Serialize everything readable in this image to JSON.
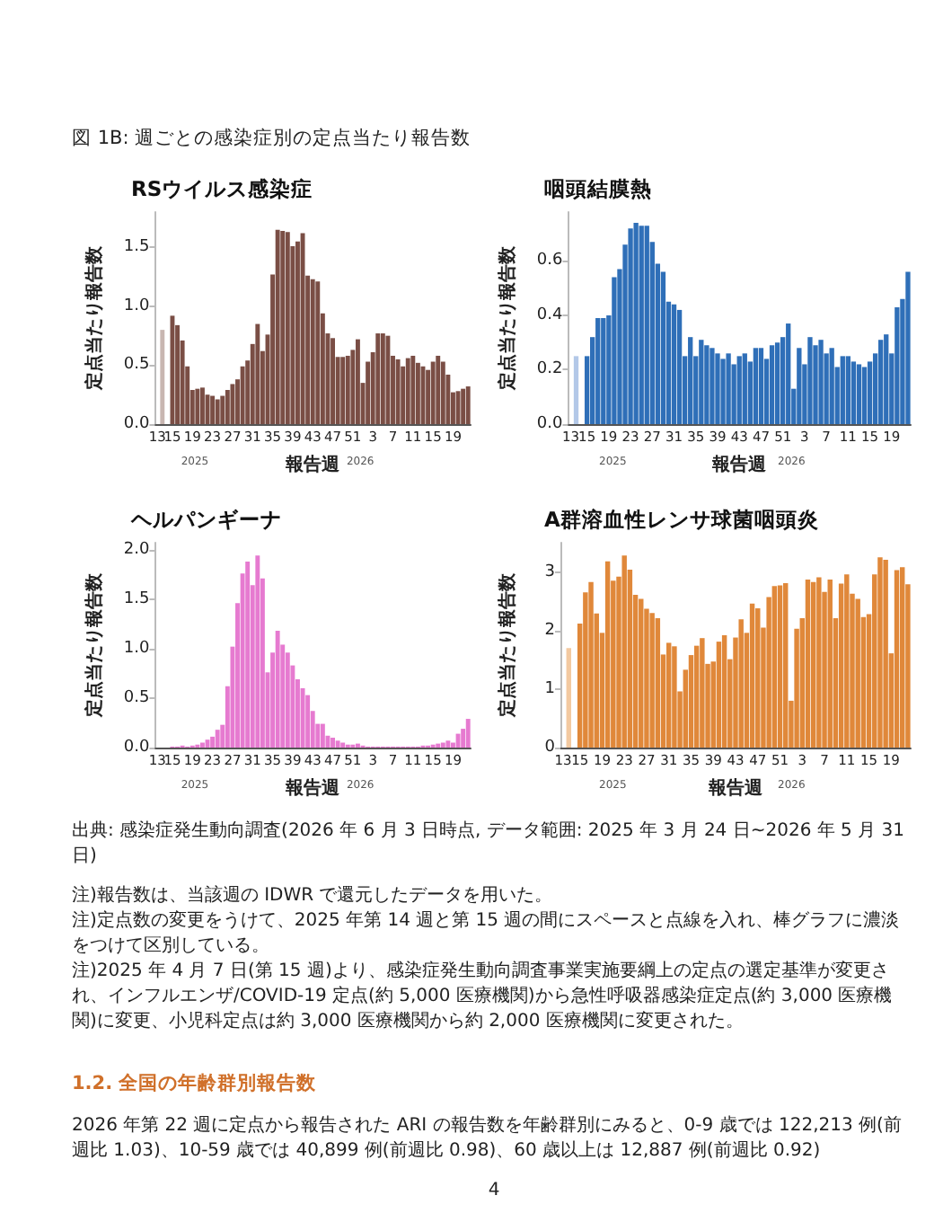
{
  "chart_data": [
    {
      "type": "other",
      "title": "図 1B: 週ごとの感染症別の定点当たり報告数"
    },
    {
      "type": "bar",
      "title": "RSウイルス感染症",
      "xlabel": "報告週",
      "ylabel": "定点当たり報告数",
      "categories": [
        "13",
        null,
        null,
        "15",
        null,
        null,
        null,
        "19",
        null,
        null,
        null,
        "23",
        null,
        null,
        null,
        "27",
        null,
        null,
        null,
        "31",
        null,
        null,
        null,
        "35",
        null,
        null,
        null,
        "39",
        null,
        null,
        null,
        "43",
        null,
        null,
        null,
        "47",
        null,
        null,
        null,
        "51",
        null,
        null,
        null,
        "3",
        null,
        null,
        null,
        "7",
        null,
        null,
        null,
        "11",
        null,
        null,
        null,
        "15",
        null,
        null,
        null,
        "19",
        null,
        null,
        null
      ],
      "values": [
        null,
        0.8,
        null,
        0.92,
        0.84,
        0.71,
        0.49,
        0.29,
        0.3,
        0.31,
        0.25,
        0.24,
        0.21,
        0.24,
        0.29,
        0.34,
        0.38,
        0.49,
        0.54,
        0.68,
        0.85,
        0.62,
        0.76,
        1.27,
        1.65,
        1.64,
        1.63,
        1.51,
        1.55,
        1.62,
        1.26,
        1.23,
        1.21,
        0.94,
        0.77,
        0.73,
        0.57,
        0.57,
        0.58,
        0.63,
        0.72,
        0.35,
        0.53,
        0.61,
        0.77,
        0.77,
        0.75,
        0.58,
        0.55,
        0.49,
        0.56,
        0.58,
        0.52,
        0.49,
        0.46,
        0.53,
        0.58,
        0.53,
        0.42,
        0.27,
        0.28,
        0.3,
        0.32
      ],
      "colors": [
        "#7a4e45",
        "#c8b6b1",
        "#7a4e45",
        "#7a4e45",
        "#7a4e45",
        "#7a4e45",
        "#7a4e45",
        "#7a4e45",
        "#7a4e45",
        "#7a4e45",
        "#7a4e45",
        "#7a4e45",
        "#7a4e45",
        "#7a4e45",
        "#7a4e45",
        "#7a4e45",
        "#7a4e45",
        "#7a4e45",
        "#7a4e45",
        "#7a4e45",
        "#7a4e45",
        "#7a4e45",
        "#7a4e45",
        "#7a4e45",
        "#7a4e45",
        "#7a4e45",
        "#7a4e45",
        "#7a4e45",
        "#7a4e45",
        "#7a4e45",
        "#7a4e45",
        "#7a4e45",
        "#7a4e45",
        "#7a4e45",
        "#7a4e45",
        "#7a4e45",
        "#7a4e45",
        "#7a4e45",
        "#7a4e45",
        "#7a4e45",
        "#7a4e45",
        "#7a4e45",
        "#7a4e45",
        "#7a4e45",
        "#7a4e45",
        "#7a4e45",
        "#7a4e45",
        "#7a4e45",
        "#7a4e45",
        "#7a4e45",
        "#7a4e45",
        "#7a4e45",
        "#7a4e45",
        "#7a4e45",
        "#7a4e45",
        "#7a4e45",
        "#7a4e45",
        "#7a4e45",
        "#7a4e45",
        "#7a4e45",
        "#7a4e45",
        "#7a4e45",
        "#7a4e45"
      ],
      "ylim": [
        0,
        1.8
      ],
      "yticks": [
        {
          "value": 0,
          "label": "0.0"
        },
        0.5,
        {
          "value": 1,
          "label": "1.0"
        },
        1.5
      ],
      "annotations": [
        "2025",
        "2026"
      ]
    },
    {
      "type": "bar",
      "title": "咽頭結膜熱",
      "xlabel": "報告週",
      "ylabel": "定点当たり報告数",
      "categories": [
        "13",
        null,
        null,
        "15",
        null,
        null,
        null,
        "19",
        null,
        null,
        null,
        "23",
        null,
        null,
        null,
        "27",
        null,
        null,
        null,
        "31",
        null,
        null,
        null,
        "35",
        null,
        null,
        null,
        "39",
        null,
        null,
        null,
        "43",
        null,
        null,
        null,
        "47",
        null,
        null,
        null,
        "51",
        null,
        null,
        null,
        "3",
        null,
        null,
        null,
        "7",
        null,
        null,
        null,
        "11",
        null,
        null,
        null,
        "15",
        null,
        null,
        null,
        "19",
        null,
        null,
        null
      ],
      "values": [
        null,
        0.25,
        null,
        0.25,
        0.32,
        0.39,
        0.39,
        0.4,
        0.54,
        0.57,
        0.66,
        0.72,
        0.74,
        0.73,
        0.73,
        0.67,
        0.59,
        0.56,
        0.45,
        0.44,
        0.42,
        0.25,
        0.32,
        0.25,
        0.31,
        0.29,
        0.28,
        0.26,
        0.24,
        0.26,
        0.22,
        0.25,
        0.26,
        0.23,
        0.28,
        0.28,
        0.24,
        0.29,
        0.3,
        0.32,
        0.37,
        0.13,
        0.28,
        0.22,
        0.32,
        0.29,
        0.31,
        0.26,
        0.28,
        0.21,
        0.25,
        0.25,
        0.23,
        0.22,
        0.21,
        0.23,
        0.26,
        0.31,
        0.33,
        0.26,
        0.43,
        0.46,
        0.56
      ],
      "colors": [
        "#2f6fb8",
        "#b3c8e8",
        "#2f6fb8",
        "#2f6fb8",
        "#2f6fb8",
        "#2f6fb8",
        "#2f6fb8",
        "#2f6fb8",
        "#2f6fb8",
        "#2f6fb8",
        "#2f6fb8",
        "#2f6fb8",
        "#2f6fb8",
        "#2f6fb8",
        "#2f6fb8",
        "#2f6fb8",
        "#2f6fb8",
        "#2f6fb8",
        "#2f6fb8",
        "#2f6fb8",
        "#2f6fb8",
        "#2f6fb8",
        "#2f6fb8",
        "#2f6fb8",
        "#2f6fb8",
        "#2f6fb8",
        "#2f6fb8",
        "#2f6fb8",
        "#2f6fb8",
        "#2f6fb8",
        "#2f6fb8",
        "#2f6fb8",
        "#2f6fb8",
        "#2f6fb8",
        "#2f6fb8",
        "#2f6fb8",
        "#2f6fb8",
        "#2f6fb8",
        "#2f6fb8",
        "#2f6fb8",
        "#2f6fb8",
        "#2f6fb8",
        "#2f6fb8",
        "#2f6fb8",
        "#2f6fb8",
        "#2f6fb8",
        "#2f6fb8",
        "#2f6fb8",
        "#2f6fb8",
        "#2f6fb8",
        "#2f6fb8",
        "#2f6fb8",
        "#2f6fb8",
        "#2f6fb8",
        "#2f6fb8",
        "#2f6fb8",
        "#2f6fb8",
        "#2f6fb8",
        "#2f6fb8",
        "#2f6fb8",
        "#2f6fb8",
        "#2f6fb8",
        "#2f6fb8"
      ],
      "ylim": [
        0,
        0.78
      ],
      "yticks": [
        {
          "value": 0,
          "label": "0.0"
        },
        0.2,
        0.4,
        0.6
      ],
      "annotations": [
        "2025",
        "2026"
      ]
    },
    {
      "type": "bar",
      "title": "ヘルパンギーナ",
      "xlabel": "報告週",
      "ylabel": "定点当たり報告数",
      "categories": [
        "13",
        null,
        null,
        "15",
        null,
        null,
        null,
        "19",
        null,
        null,
        null,
        "23",
        null,
        null,
        null,
        "27",
        null,
        null,
        null,
        "31",
        null,
        null,
        null,
        "35",
        null,
        null,
        null,
        "39",
        null,
        null,
        null,
        "43",
        null,
        null,
        null,
        "47",
        null,
        null,
        null,
        "51",
        null,
        null,
        null,
        "3",
        null,
        null,
        null,
        "7",
        null,
        null,
        null,
        "11",
        null,
        null,
        null,
        "15",
        null,
        null,
        null,
        "19",
        null,
        null,
        null
      ],
      "values": [
        null,
        0,
        null,
        0.01,
        0.01,
        0.02,
        0.01,
        0.02,
        0.03,
        0.05,
        0.08,
        0.11,
        0.18,
        0.23,
        0.62,
        1.02,
        1.46,
        1.76,
        1.88,
        1.64,
        1.94,
        1.71,
        0.76,
        0.96,
        1.18,
        1.04,
        0.96,
        0.83,
        0.69,
        0.6,
        0.53,
        0.37,
        0.24,
        0.24,
        0.12,
        0.1,
        0.07,
        0.05,
        0.03,
        0.03,
        0.04,
        0.02,
        0.01,
        0.01,
        0.01,
        0.01,
        0.01,
        0.01,
        0.01,
        0.01,
        0.01,
        0.01,
        0.01,
        0.02,
        0.02,
        0.03,
        0.04,
        0.05,
        0.07,
        0.05,
        0.14,
        0.19,
        0.29
      ],
      "colors": [
        "#e67ad0",
        "#f3c6ea",
        "#e67ad0",
        "#e67ad0",
        "#e67ad0",
        "#e67ad0",
        "#e67ad0",
        "#e67ad0",
        "#e67ad0",
        "#e67ad0",
        "#e67ad0",
        "#e67ad0",
        "#e67ad0",
        "#e67ad0",
        "#e67ad0",
        "#e67ad0",
        "#e67ad0",
        "#e67ad0",
        "#e67ad0",
        "#e67ad0",
        "#e67ad0",
        "#e67ad0",
        "#e67ad0",
        "#e67ad0",
        "#e67ad0",
        "#e67ad0",
        "#e67ad0",
        "#e67ad0",
        "#e67ad0",
        "#e67ad0",
        "#e67ad0",
        "#e67ad0",
        "#e67ad0",
        "#e67ad0",
        "#e67ad0",
        "#e67ad0",
        "#e67ad0",
        "#e67ad0",
        "#e67ad0",
        "#e67ad0",
        "#e67ad0",
        "#e67ad0",
        "#e67ad0",
        "#e67ad0",
        "#e67ad0",
        "#e67ad0",
        "#e67ad0",
        "#e67ad0",
        "#e67ad0",
        "#e67ad0",
        "#e67ad0",
        "#e67ad0",
        "#e67ad0",
        "#e67ad0",
        "#e67ad0",
        "#e67ad0",
        "#e67ad0",
        "#e67ad0",
        "#e67ad0",
        "#e67ad0",
        "#e67ad0",
        "#e67ad0",
        "#e67ad0"
      ],
      "ylim": [
        0,
        2.07
      ],
      "yticks": [
        {
          "value": 0,
          "label": "0.0"
        },
        0.5,
        {
          "value": 1,
          "label": "1.0"
        },
        1.5,
        {
          "value": 2,
          "label": "2.0"
        }
      ],
      "annotations": [
        "2025",
        "2026"
      ]
    },
    {
      "type": "bar",
      "title": "A群溶血性レンサ球菌咽頭炎",
      "xlabel": "報告週",
      "ylabel": "定点当たり報告数",
      "categories": [
        "13",
        null,
        null,
        "15",
        null,
        null,
        null,
        "19",
        null,
        null,
        null,
        "23",
        null,
        null,
        null,
        "27",
        null,
        null,
        null,
        "31",
        null,
        null,
        null,
        "35",
        null,
        null,
        null,
        "39",
        null,
        null,
        null,
        "43",
        null,
        null,
        null,
        "47",
        null,
        null,
        null,
        "51",
        null,
        null,
        null,
        "3",
        null,
        null,
        null,
        "7",
        null,
        null,
        null,
        "11",
        null,
        null,
        null,
        "15",
        null,
        null,
        null,
        "19",
        null,
        null,
        null
      ],
      "values": [
        null,
        1.7,
        null,
        2.12,
        2.65,
        2.83,
        2.29,
        1.96,
        3.18,
        2.85,
        2.92,
        3.28,
        3.04,
        2.61,
        2.54,
        2.37,
        2.3,
        2.21,
        1.59,
        1.79,
        1.73,
        0.96,
        1.33,
        1.58,
        1.74,
        1.87,
        1.43,
        1.47,
        1.81,
        1.92,
        1.51,
        1.88,
        2.19,
        1.96,
        2.46,
        2.38,
        2.05,
        2.57,
        2.76,
        2.77,
        2.81,
        0.8,
        2.03,
        2.21,
        2.87,
        2.83,
        2.91,
        2.66,
        2.87,
        2.21,
        2.8,
        2.96,
        2.63,
        2.54,
        2.23,
        2.28,
        2.96,
        3.25,
        3.21,
        1.61,
        3.03,
        3.08,
        2.79
      ],
      "colors": [
        "#e0883a",
        "#f3c9a0",
        "#e0883a",
        "#e0883a",
        "#e0883a",
        "#e0883a",
        "#e0883a",
        "#e0883a",
        "#e0883a",
        "#e0883a",
        "#e0883a",
        "#e0883a",
        "#e0883a",
        "#e0883a",
        "#e0883a",
        "#e0883a",
        "#e0883a",
        "#e0883a",
        "#e0883a",
        "#e0883a",
        "#e0883a",
        "#e0883a",
        "#e0883a",
        "#e0883a",
        "#e0883a",
        "#e0883a",
        "#e0883a",
        "#e0883a",
        "#e0883a",
        "#e0883a",
        "#e0883a",
        "#e0883a",
        "#e0883a",
        "#e0883a",
        "#e0883a",
        "#e0883a",
        "#e0883a",
        "#e0883a",
        "#e0883a",
        "#e0883a",
        "#e0883a",
        "#e0883a",
        "#e0883a",
        "#e0883a",
        "#e0883a",
        "#e0883a",
        "#e0883a",
        "#e0883a",
        "#e0883a",
        "#e0883a",
        "#e0883a",
        "#e0883a",
        "#e0883a",
        "#e0883a",
        "#e0883a",
        "#e0883a",
        "#e0883a",
        "#e0883a",
        "#e0883a",
        "#e0883a",
        "#e0883a",
        "#e0883a",
        "#e0883a"
      ],
      "ylim": [
        0,
        3.5
      ],
      "yticks": [
        0,
        1,
        2,
        3
      ],
      "annotations": [
        "2025",
        "2026"
      ]
    },
    {
      "type": "other",
      "annotations": [
        "出典: 感染症発生動向調査(2026 年 6 月 3 日時点, データ範囲: 2025 年 3 月 24 日~2026 年 5 月 31 日)",
        "注)報告数は、当該週の IDWR で還元したデータを用いた。",
        "注)定点数の変更をうけて、2025 年第 14 週と第 15 週の間にスペースと点線を入れ、棒グラフに濃淡をつけて区別している。",
        "注)2025 年 4 月 7 日(第 15 週)より、感染症発生動向調査事業実施要綱上の定点の選定基準が変更され、インフルエンザ/COVID-19 定点(約 5,000 医療機関)から急性呼吸器感染症定点(約 3,000 医療機関)に変更、小児科定点は約 3,000 医療機関から約 2,000 医療機関に変更された。"
      ]
    },
    {
      "type": "other",
      "title": "1.2. 全国の年齢群別報告数",
      "annotations": [
        "2026 年第 22 週に定点から報告された ARI の報告数を年齢群別にみると、0-9 歳では 122,213 例(前週比 1.03)、10-59 歳では 40,899 例(前週比 0.98)、60 歳以上は 12,887 例(前週比 0.92)",
        "4"
      ]
    }
  ]
}
